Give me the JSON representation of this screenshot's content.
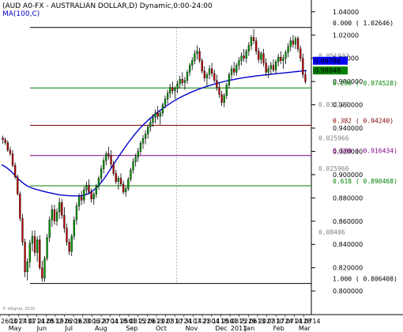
{
  "header": {
    "title": "(AUD A0-FX - AUSTRALIAN DOLLAR,D) Dynamic,0:00-24:00",
    "indicator": "MA(100,C)",
    "copyright": "© eSignal, 2010"
  },
  "chart_data": {
    "type": "candlestick",
    "xlim": [
      0,
      220
    ],
    "ylim": [
      0.796,
      1.046
    ],
    "y_ticks": [
      0.8,
      0.82,
      0.84,
      0.86,
      0.88,
      0.9,
      0.92,
      0.94,
      0.96,
      0.98,
      1.0,
      1.02,
      1.04
    ],
    "y_tick_labels": [
      "0.800000",
      "0.820000",
      "0.840000",
      "0.860000",
      "0.880000",
      "0.900000",
      "0.920000",
      "0.940000",
      "0.960000",
      "0.980000",
      "1.00000",
      "1.02000",
      "1.04000"
    ],
    "day_labels": [
      "2603",
      "1017",
      "2431",
      "0714",
      "2128",
      "0512",
      "1926",
      "0209",
      "1623",
      "3006",
      "1320",
      "2704",
      "1118",
      "2501",
      "0815",
      "2229",
      "0613",
      "2027",
      "0310",
      "1724",
      "3107",
      "1421",
      "2804",
      "1118",
      "2501",
      "0815",
      "2229",
      "0613",
      "2027",
      "0310",
      "1724",
      "0714",
      "2128",
      "0714"
    ],
    "month_labels": [
      "May",
      "Jun",
      "Jul",
      "Aug",
      "Sep",
      "Oct",
      "Nov",
      "Dec",
      "2011",
      "Jan",
      "Feb",
      "Mar"
    ],
    "month_positions": [
      6,
      26,
      46,
      67,
      89,
      110,
      131,
      152,
      163,
      173,
      193,
      211
    ],
    "day_label_positions": [
      0,
      6.5,
      13,
      19.5,
      26,
      32.5,
      39,
      45.5,
      52,
      58.5,
      65,
      71.5,
      78,
      84.5,
      91,
      97.5,
      104,
      110.5,
      117,
      123.5,
      130,
      136.5,
      143,
      149.5,
      156,
      162.5,
      169,
      175.5,
      182,
      188.5,
      195,
      201.5,
      208,
      214.5
    ],
    "fib_levels": [
      {
        "ratio_label": "0.000",
        "price": 1.02646,
        "label": "0.000 ( 1.02646)",
        "color": "#000000"
      },
      {
        "ratio_label": "0.236",
        "price": 0.974528,
        "label": "0.236 ( 0.974528)",
        "color": "#008000"
      },
      {
        "ratio_label": "0.382",
        "price": 0.9424,
        "label": "0.382 ( 0.94240)",
        "color": "#800000"
      },
      {
        "ratio_label": "0.500 ",
        "price": 0.916434,
        "label": "0.500 ( 0.916434)",
        "color": "#800080"
      },
      {
        "ratio_label": "0.618",
        "price": 0.890468,
        "label": "0.618 ( 0.890468)",
        "color": "#008000"
      },
      {
        "ratio_label": "1.000",
        "price": 0.806408,
        "label": "1.000 ( 0.806408)",
        "color": "#000000"
      }
    ],
    "fib_distance_labels": [
      {
        "text": "0.051932",
        "price": 1.0003
      },
      {
        "text": "0.032128",
        "price": 0.9585
      },
      {
        "text": "0.025966",
        "price": 0.9295
      },
      {
        "text": "0.025966",
        "price": 0.9033
      },
      {
        "text": "0.08406",
        "price": 0.8485
      }
    ],
    "last_price": {
      "value": 0.99788,
      "label": "0.99788",
      "bg": "#0000ff",
      "fg": "#ffffff"
    },
    "ma_price": {
      "value": 0.98948,
      "label": "0.98948",
      "bg": "#008000",
      "fg": "#ffffff"
    },
    "candles": [
      [
        0.9315,
        0.9335,
        0.9265,
        0.93
      ],
      [
        0.93,
        0.932,
        0.9255,
        0.9275
      ],
      [
        0.9275,
        0.9295,
        0.9195,
        0.921
      ],
      [
        0.921,
        0.924,
        0.916,
        0.918
      ],
      [
        0.918,
        0.921,
        0.9065,
        0.908
      ],
      [
        0.908,
        0.9105,
        0.896,
        0.898
      ],
      [
        0.898,
        0.9,
        0.882,
        0.8835
      ],
      [
        0.8835,
        0.8855,
        0.86,
        0.8625
      ],
      [
        0.8625,
        0.866,
        0.839,
        0.842
      ],
      [
        0.842,
        0.845,
        0.812,
        0.8165
      ],
      [
        0.8165,
        0.828,
        0.809,
        0.825
      ],
      [
        0.825,
        0.844,
        0.82,
        0.841
      ],
      [
        0.841,
        0.852,
        0.834,
        0.847
      ],
      [
        0.847,
        0.852,
        0.83,
        0.833
      ],
      [
        0.833,
        0.847,
        0.825,
        0.844
      ],
      [
        0.844,
        0.848,
        0.818,
        0.82
      ],
      [
        0.82,
        0.826,
        0.808,
        0.811
      ],
      [
        0.811,
        0.83,
        0.808,
        0.828
      ],
      [
        0.828,
        0.849,
        0.826,
        0.846
      ],
      [
        0.846,
        0.864,
        0.842,
        0.861
      ],
      [
        0.861,
        0.874,
        0.855,
        0.87
      ],
      [
        0.87,
        0.874,
        0.857,
        0.86
      ],
      [
        0.86,
        0.871,
        0.856,
        0.868
      ],
      [
        0.868,
        0.88,
        0.862,
        0.876
      ],
      [
        0.876,
        0.879,
        0.862,
        0.865
      ],
      [
        0.865,
        0.872,
        0.85,
        0.854
      ],
      [
        0.854,
        0.858,
        0.839,
        0.842
      ],
      [
        0.842,
        0.845,
        0.831,
        0.834
      ],
      [
        0.834,
        0.849,
        0.83,
        0.847
      ],
      [
        0.847,
        0.864,
        0.844,
        0.861
      ],
      [
        0.861,
        0.876,
        0.857,
        0.873
      ],
      [
        0.873,
        0.884,
        0.869,
        0.881
      ],
      [
        0.881,
        0.886,
        0.874,
        0.878
      ],
      [
        0.878,
        0.89,
        0.875,
        0.887
      ],
      [
        0.887,
        0.894,
        0.883,
        0.891
      ],
      [
        0.891,
        0.896,
        0.883,
        0.885
      ],
      [
        0.885,
        0.888,
        0.876,
        0.879
      ],
      [
        0.879,
        0.885,
        0.874,
        0.883
      ],
      [
        0.883,
        0.892,
        0.88,
        0.89
      ],
      [
        0.89,
        0.899,
        0.887,
        0.897
      ],
      [
        0.897,
        0.908,
        0.894,
        0.905
      ],
      [
        0.905,
        0.915,
        0.901,
        0.912
      ],
      [
        0.912,
        0.92,
        0.908,
        0.918
      ],
      [
        0.918,
        0.924,
        0.913,
        0.916
      ],
      [
        0.916,
        0.921,
        0.906,
        0.909
      ],
      [
        0.909,
        0.912,
        0.899,
        0.901
      ],
      [
        0.901,
        0.904,
        0.892,
        0.894
      ],
      [
        0.894,
        0.899,
        0.887,
        0.897
      ],
      [
        0.897,
        0.901,
        0.89,
        0.892
      ],
      [
        0.892,
        0.895,
        0.883,
        0.885
      ],
      [
        0.885,
        0.89,
        0.881,
        0.888
      ],
      [
        0.888,
        0.898,
        0.886,
        0.896
      ],
      [
        0.896,
        0.906,
        0.894,
        0.904
      ],
      [
        0.904,
        0.914,
        0.901,
        0.911
      ],
      [
        0.911,
        0.918,
        0.907,
        0.915
      ],
      [
        0.915,
        0.923,
        0.911,
        0.92
      ],
      [
        0.92,
        0.929,
        0.917,
        0.927
      ],
      [
        0.927,
        0.934,
        0.922,
        0.931
      ],
      [
        0.931,
        0.938,
        0.926,
        0.935
      ],
      [
        0.935,
        0.943,
        0.931,
        0.941
      ],
      [
        0.941,
        0.948,
        0.937,
        0.945
      ],
      [
        0.945,
        0.952,
        0.941,
        0.949
      ],
      [
        0.949,
        0.956,
        0.944,
        0.953
      ],
      [
        0.953,
        0.959,
        0.947,
        0.95
      ],
      [
        0.95,
        0.955,
        0.943,
        0.953
      ],
      [
        0.953,
        0.962,
        0.95,
        0.96
      ],
      [
        0.96,
        0.968,
        0.957,
        0.965
      ],
      [
        0.965,
        0.973,
        0.961,
        0.97
      ],
      [
        0.97,
        0.978,
        0.966,
        0.975
      ],
      [
        0.975,
        0.98,
        0.969,
        0.972
      ],
      [
        0.972,
        0.976,
        0.965,
        0.974
      ],
      [
        0.974,
        0.981,
        0.97,
        0.978
      ],
      [
        0.978,
        0.985,
        0.974,
        0.982
      ],
      [
        0.982,
        0.988,
        0.976,
        0.979
      ],
      [
        0.979,
        0.984,
        0.973,
        0.981
      ],
      [
        0.981,
        0.99,
        0.978,
        0.988
      ],
      [
        0.988,
        0.996,
        0.985,
        0.994
      ],
      [
        0.994,
        1.001,
        0.99,
        0.998
      ],
      [
        0.998,
        1.007,
        0.995,
        1.004
      ],
      [
        1.004,
        1.011,
        0.999,
        1.006
      ],
      [
        1.006,
        1.009,
        0.996,
        0.998
      ],
      [
        0.998,
        1.0,
        0.987,
        0.989
      ],
      [
        0.989,
        0.993,
        0.98,
        0.983
      ],
      [
        0.983,
        0.988,
        0.976,
        0.986
      ],
      [
        0.986,
        0.994,
        0.982,
        0.991
      ],
      [
        0.991,
        0.996,
        0.984,
        0.987
      ],
      [
        0.987,
        0.99,
        0.979,
        0.981
      ],
      [
        0.981,
        0.986,
        0.972,
        0.975
      ],
      [
        0.975,
        0.979,
        0.966,
        0.969
      ],
      [
        0.969,
        0.972,
        0.959,
        0.962
      ],
      [
        0.962,
        0.97,
        0.958,
        0.968
      ],
      [
        0.968,
        0.979,
        0.965,
        0.977
      ],
      [
        0.977,
        0.988,
        0.974,
        0.986
      ],
      [
        0.986,
        0.994,
        0.982,
        0.991
      ],
      [
        0.991,
        0.997,
        0.985,
        0.988
      ],
      [
        0.988,
        0.996,
        0.985,
        0.994
      ],
      [
        0.994,
        1.001,
        0.99,
        0.998
      ],
      [
        0.998,
        1.005,
        0.994,
        1.002
      ],
      [
        1.002,
        1.008,
        0.997,
        1.0
      ],
      [
        1.0,
        1.008,
        0.996,
        1.006
      ],
      [
        1.006,
        1.014,
        1.002,
        1.011
      ],
      [
        1.011,
        1.02,
        1.007,
        1.018
      ],
      [
        1.018,
        1.025,
        1.012,
        1.015
      ],
      [
        1.015,
        1.018,
        1.003,
        1.006
      ],
      [
        1.006,
        1.009,
        0.996,
        0.999
      ],
      [
        0.999,
        1.006,
        0.995,
        1.004
      ],
      [
        1.004,
        1.008,
        0.993,
        0.996
      ],
      [
        0.996,
        1.0,
        0.985,
        0.988
      ],
      [
        0.988,
        0.994,
        0.983,
        0.991
      ],
      [
        0.991,
        0.997,
        0.986,
        0.994
      ],
      [
        0.994,
        0.999,
        0.988,
        0.99
      ],
      [
        0.99,
        0.999,
        0.987,
        0.997
      ],
      [
        0.997,
        1.004,
        0.993,
        1.001
      ],
      [
        1.001,
        1.006,
        0.995,
        0.998
      ],
      [
        0.998,
        1.003,
        0.991,
        1.0
      ],
      [
        1.0,
        1.007,
        0.995,
        1.005
      ],
      [
        1.005,
        1.013,
        1.001,
        1.01
      ],
      [
        1.01,
        1.018,
        1.006,
        1.015
      ],
      [
        1.015,
        1.02,
        1.009,
        1.012
      ],
      [
        1.012,
        1.019,
        1.008,
        1.017
      ],
      [
        1.017,
        1.019,
        1.005,
        1.008
      ],
      [
        1.008,
        1.011,
        0.997,
        1.0
      ],
      [
        1.0,
        1.004,
        0.983,
        0.986
      ],
      [
        0.986,
        0.989,
        0.978,
        0.98
      ]
    ],
    "ma100": [
      0.9085,
      0.907,
      0.905,
      0.9025,
      0.8995,
      0.8965,
      0.894,
      0.8918,
      0.89,
      0.8888,
      0.8878,
      0.887,
      0.8862,
      0.8855,
      0.8848,
      0.8842,
      0.8836,
      0.883,
      0.8825,
      0.8822,
      0.882,
      0.8818,
      0.8817,
      0.8817,
      0.8818,
      0.8822,
      0.883,
      0.8845,
      0.8865,
      0.889,
      0.892,
      0.8955,
      0.8995,
      0.9038,
      0.9082,
      0.9125,
      0.9168,
      0.921,
      0.925,
      0.9288,
      0.9325,
      0.936,
      0.9392,
      0.9422,
      0.945,
      0.9476,
      0.95,
      0.9523,
      0.9545,
      0.9566,
      0.9586,
      0.9605,
      0.9623,
      0.964,
      0.9656,
      0.9671,
      0.9685,
      0.9698,
      0.971,
      0.9722,
      0.9733,
      0.9743,
      0.9753,
      0.9762,
      0.9771,
      0.9779,
      0.9787,
      0.9794,
      0.9801,
      0.9807,
      0.9813,
      0.9819,
      0.9824,
      0.9829,
      0.9834,
      0.9838,
      0.9842,
      0.9846,
      0.985,
      0.9853,
      0.9856,
      0.9859,
      0.9862,
      0.9865,
      0.9868,
      0.9871,
      0.9874,
      0.9877,
      0.988,
      0.9883,
      0.9886,
      0.9889,
      0.9892,
      0.9895
    ]
  }
}
